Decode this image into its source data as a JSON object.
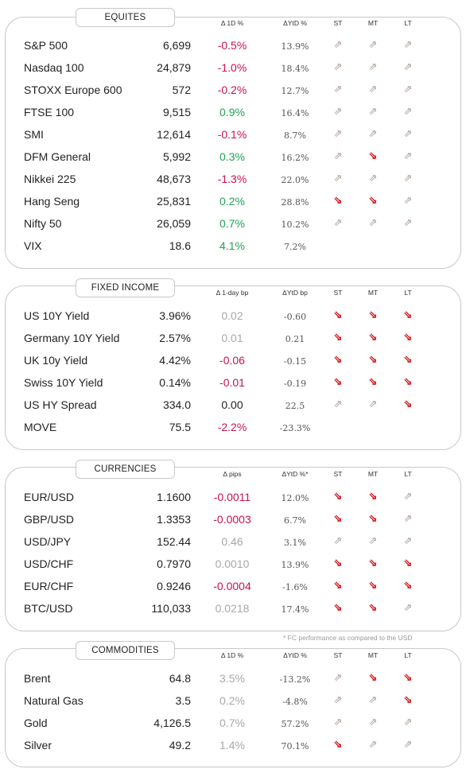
{
  "sections": [
    {
      "title": "EQUITES",
      "headers": {
        "d1": "Δ 1D %",
        "ytd": "ΔYtD %",
        "st": "ST",
        "mt": "MT",
        "lt": "LT"
      },
      "rows": [
        {
          "name": "S&P 500",
          "value": "6,699",
          "d1": "-0.5%",
          "d1_tone": "neg",
          "ytd": "13.9%",
          "st": "up",
          "mt": "up",
          "lt": "up"
        },
        {
          "name": "Nasdaq 100",
          "value": "24,879",
          "d1": "-1.0%",
          "d1_tone": "neg",
          "ytd": "18.4%",
          "st": "up",
          "mt": "up",
          "lt": "up"
        },
        {
          "name": "STOXX Europe 600",
          "value": "572",
          "d1": "-0.2%",
          "d1_tone": "neg",
          "ytd": "12.7%",
          "st": "up",
          "mt": "up",
          "lt": "up"
        },
        {
          "name": "FTSE 100",
          "value": "9,515",
          "d1": "0.9%",
          "d1_tone": "pos",
          "ytd": "16.4%",
          "st": "up",
          "mt": "up",
          "lt": "up"
        },
        {
          "name": "SMI",
          "value": "12,614",
          "d1": "-0.1%",
          "d1_tone": "neg",
          "ytd": "8.7%",
          "st": "up",
          "mt": "up",
          "lt": "up"
        },
        {
          "name": "DFM General",
          "value": "5,992",
          "d1": "0.3%",
          "d1_tone": "pos",
          "ytd": "16.2%",
          "st": "up",
          "mt": "down",
          "lt": "up"
        },
        {
          "name": "Nikkei 225",
          "value": "48,673",
          "d1": "-1.3%",
          "d1_tone": "neg",
          "ytd": "22.0%",
          "st": "up",
          "mt": "up",
          "lt": "up"
        },
        {
          "name": "Hang Seng",
          "value": "25,831",
          "d1": "0.2%",
          "d1_tone": "pos",
          "ytd": "28.8%",
          "st": "down",
          "mt": "down",
          "lt": "up"
        },
        {
          "name": "Nifty  50",
          "value": "26,059",
          "d1": "0.7%",
          "d1_tone": "pos",
          "ytd": "10.2%",
          "st": "up",
          "mt": "up",
          "lt": "up"
        },
        {
          "name": "VIX",
          "value": "18.6",
          "d1": "4.1%",
          "d1_tone": "pos",
          "ytd": "7.2%",
          "st": "",
          "mt": "",
          "lt": ""
        }
      ]
    },
    {
      "title": "FIXED INCOME",
      "headers": {
        "d1": "Δ 1-day bp",
        "ytd": "ΔYtD bp",
        "st": "ST",
        "mt": "MT",
        "lt": "LT"
      },
      "rows": [
        {
          "name": "US 10Y Yield",
          "value": "3.96%",
          "d1": "0.02",
          "d1_tone": "gry",
          "ytd": "-0.60",
          "st": "down",
          "mt": "down",
          "lt": "down"
        },
        {
          "name": "Germany 10Y Yield",
          "value": "2.57%",
          "d1": "0.01",
          "d1_tone": "gry",
          "ytd": "0.21",
          "st": "down",
          "mt": "down",
          "lt": "down"
        },
        {
          "name": "UK 10y Yield",
          "value": "4.42%",
          "d1": "-0.06",
          "d1_tone": "neg",
          "ytd": "-0.15",
          "st": "down",
          "mt": "down",
          "lt": "down"
        },
        {
          "name": "Swiss 10Y Yield",
          "value": "0.14%",
          "d1": "-0.01",
          "d1_tone": "neg",
          "ytd": "-0.19",
          "st": "down",
          "mt": "down",
          "lt": "down"
        },
        {
          "name": "US HY Spread",
          "value": "334.0",
          "d1": "0.00",
          "d1_tone": "neu",
          "ytd": "22.5",
          "st": "up",
          "mt": "up",
          "lt": "down"
        },
        {
          "name": "MOVE",
          "value": "75.5",
          "d1": "-2.2%",
          "d1_tone": "neg",
          "ytd": "-23.3%",
          "st": "",
          "mt": "",
          "lt": ""
        }
      ]
    },
    {
      "title": "CURRENCIES",
      "headers": {
        "d1": "Δ pips",
        "ytd": "ΔYtD %*",
        "st": "ST",
        "mt": "MT",
        "lt": "LT"
      },
      "rows": [
        {
          "name": "EUR/USD",
          "value": "1.1600",
          "d1": "-0.0011",
          "d1_tone": "neg",
          "ytd": "12.0%",
          "st": "down",
          "mt": "down",
          "lt": "up"
        },
        {
          "name": "GBP/USD",
          "value": "1.3353",
          "d1": "-0.0003",
          "d1_tone": "neg",
          "ytd": "6.7%",
          "st": "down",
          "mt": "down",
          "lt": "up"
        },
        {
          "name": "USD/JPY",
          "value": "152.44",
          "d1": "0.46",
          "d1_tone": "gry",
          "ytd": "3.1%",
          "st": "up",
          "mt": "up",
          "lt": "up"
        },
        {
          "name": "USD/CHF",
          "value": "0.7970",
          "d1": "0.0010",
          "d1_tone": "gry",
          "ytd": "13.9%",
          "st": "down",
          "mt": "down",
          "lt": "down"
        },
        {
          "name": "EUR/CHF",
          "value": "0.9246",
          "d1": "-0.0004",
          "d1_tone": "neg",
          "ytd": "-1.6%",
          "st": "down",
          "mt": "down",
          "lt": "down"
        },
        {
          "name": "BTC/USD",
          "value": "110,033",
          "d1": "0.0218",
          "d1_tone": "gry",
          "ytd": "17.4%",
          "st": "down",
          "mt": "down",
          "lt": "up"
        }
      ]
    },
    {
      "title": "COMMODITIES",
      "headers": {
        "d1": "Δ 1D %",
        "ytd": "ΔYtD %",
        "st": "ST",
        "mt": "MT",
        "lt": "LT"
      },
      "rows": [
        {
          "name": "Brent",
          "value": "64.8",
          "d1": "3.5%",
          "d1_tone": "gry",
          "ytd": "-13.2%",
          "st": "up",
          "mt": "down",
          "lt": "down"
        },
        {
          "name": "Natural Gas",
          "value": "3.5",
          "d1": "0.2%",
          "d1_tone": "gry",
          "ytd": "-4.8%",
          "st": "up",
          "mt": "up",
          "lt": "down"
        },
        {
          "name": "Gold",
          "value": "4,126.5",
          "d1": "0.7%",
          "d1_tone": "gry",
          "ytd": "57.2%",
          "st": "up",
          "mt": "up",
          "lt": "up"
        },
        {
          "name": "Silver",
          "value": "49.2",
          "d1": "1.4%",
          "d1_tone": "gry",
          "ytd": "70.1%",
          "st": "down",
          "mt": "up",
          "lt": "up"
        }
      ]
    }
  ],
  "footnote": "* FC performance as compared to the USD",
  "arrows": {
    "up": "⇗",
    "down": "⇘",
    "up_color": "#a99a90",
    "down_color": "#d4161d"
  }
}
